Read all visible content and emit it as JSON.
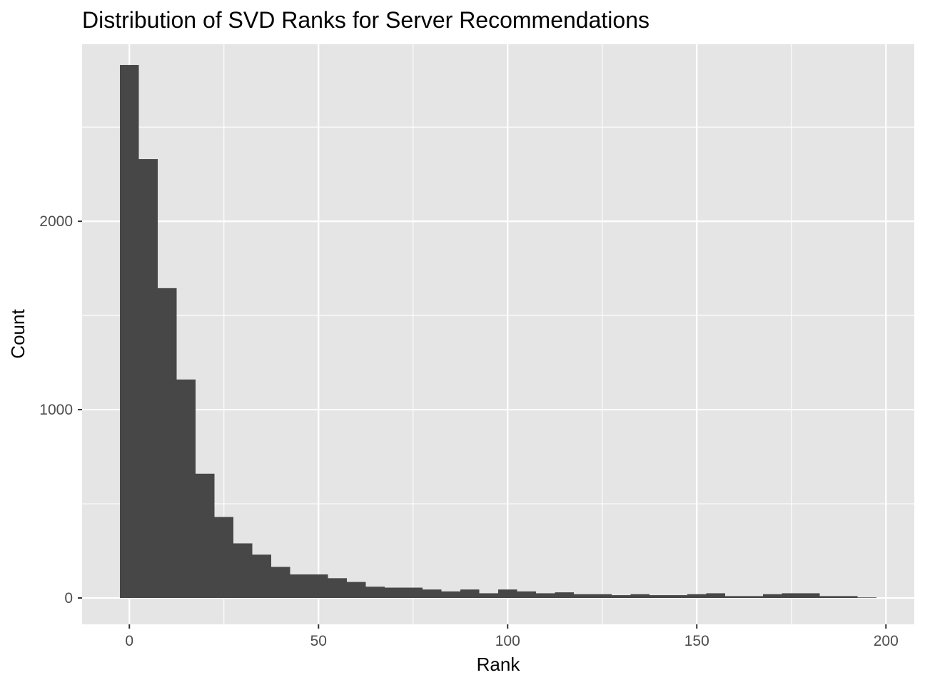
{
  "chart_data": {
    "type": "bar",
    "title": "Distribution of SVD Ranks for Server Recommendations",
    "xlabel": "Rank",
    "ylabel": "Count",
    "xlim": [
      -12.5,
      207.5
    ],
    "ylim": [
      -140,
      2940
    ],
    "bin_width": 5,
    "x_ticks": [
      0,
      50,
      100,
      150,
      200
    ],
    "x_tick_labels": [
      "0",
      "50",
      "100",
      "150",
      "200"
    ],
    "y_ticks": [
      0,
      1000,
      2000
    ],
    "y_tick_labels": [
      "0",
      "1000",
      "2000"
    ],
    "grid": true,
    "bar_color": "#474747",
    "panel_color": "#E5E5E5",
    "grid_color": "#FFFFFF",
    "bins": [
      {
        "x": 0,
        "count": 2830
      },
      {
        "x": 5,
        "count": 2330
      },
      {
        "x": 10,
        "count": 1645
      },
      {
        "x": 15,
        "count": 1160
      },
      {
        "x": 20,
        "count": 660
      },
      {
        "x": 25,
        "count": 430
      },
      {
        "x": 30,
        "count": 290
      },
      {
        "x": 35,
        "count": 230
      },
      {
        "x": 40,
        "count": 165
      },
      {
        "x": 45,
        "count": 125
      },
      {
        "x": 50,
        "count": 125
      },
      {
        "x": 55,
        "count": 105
      },
      {
        "x": 60,
        "count": 85
      },
      {
        "x": 65,
        "count": 60
      },
      {
        "x": 70,
        "count": 55
      },
      {
        "x": 75,
        "count": 55
      },
      {
        "x": 80,
        "count": 45
      },
      {
        "x": 85,
        "count": 35
      },
      {
        "x": 90,
        "count": 45
      },
      {
        "x": 95,
        "count": 25
      },
      {
        "x": 100,
        "count": 45
      },
      {
        "x": 105,
        "count": 35
      },
      {
        "x": 110,
        "count": 25
      },
      {
        "x": 115,
        "count": 30
      },
      {
        "x": 120,
        "count": 20
      },
      {
        "x": 125,
        "count": 20
      },
      {
        "x": 130,
        "count": 15
      },
      {
        "x": 135,
        "count": 20
      },
      {
        "x": 140,
        "count": 15
      },
      {
        "x": 145,
        "count": 15
      },
      {
        "x": 150,
        "count": 20
      },
      {
        "x": 155,
        "count": 25
      },
      {
        "x": 160,
        "count": 10
      },
      {
        "x": 165,
        "count": 10
      },
      {
        "x": 170,
        "count": 20
      },
      {
        "x": 175,
        "count": 25
      },
      {
        "x": 180,
        "count": 25
      },
      {
        "x": 185,
        "count": 10
      },
      {
        "x": 190,
        "count": 10
      },
      {
        "x": 195,
        "count": 3
      }
    ]
  }
}
